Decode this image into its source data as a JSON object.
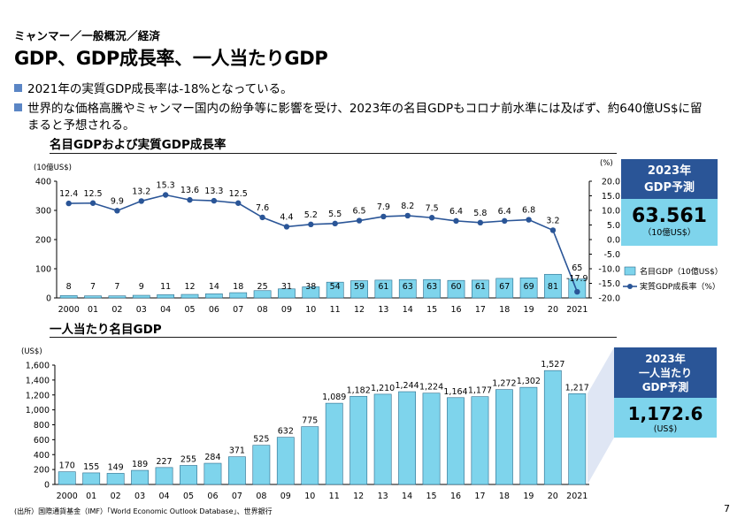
{
  "header": {
    "breadcrumb": "ミャンマー／一般概況／経済",
    "title": "GDP、GDP成長率、一人当たりGDP"
  },
  "bullets": [
    "2021年の実質GDP成長率は-18%となっている。",
    "世界的な価格高騰やミャンマー国内の紛争等に影響を受け、2023年の名目GDPもコロナ前水準には及ばず、約640億US$に留",
    "まると予想される。"
  ],
  "chart_data": [
    {
      "type": "bar",
      "title": "名目GDPおよび実質GDP成長率",
      "categories": [
        "2000",
        "01",
        "02",
        "03",
        "04",
        "05",
        "06",
        "07",
        "08",
        "09",
        "10",
        "11",
        "12",
        "13",
        "14",
        "15",
        "16",
        "17",
        "18",
        "19",
        "20",
        "2021"
      ],
      "y_unit": "(10億US$)",
      "y2_unit": "(%)",
      "ylim": [
        0,
        400
      ],
      "yticks": [
        "0",
        "100",
        "200",
        "300",
        "400"
      ],
      "y2lim": [
        -20,
        20
      ],
      "y2ticks": [
        "-20.0",
        "-15.0",
        "-10.0",
        "-5.0",
        "0.0",
        "5.0",
        "10.0",
        "15.0",
        "20.0"
      ],
      "series": [
        {
          "name": "名目GDP（10億US$）",
          "type": "bar",
          "color": "#7ed4ec",
          "values": [
            8,
            7,
            7,
            9,
            11,
            12,
            14,
            18,
            25,
            31,
            38,
            54,
            59,
            61,
            63,
            63,
            60,
            61,
            67,
            69,
            81,
            65
          ],
          "labels": [
            "8",
            "7",
            "7",
            "9",
            "11",
            "12",
            "14",
            "18",
            "25",
            "31",
            "38",
            "54",
            "59",
            "61",
            "63",
            "63",
            "60",
            "61",
            "67",
            "69",
            "81",
            "65"
          ]
        },
        {
          "name": "実質GDP成長率（%）",
          "type": "line",
          "color": "#2a5597",
          "values": [
            12.4,
            12.5,
            9.9,
            13.2,
            15.3,
            13.6,
            13.3,
            12.5,
            7.6,
            4.4,
            5.2,
            5.5,
            6.5,
            7.9,
            8.2,
            7.5,
            6.4,
            5.8,
            6.4,
            6.8,
            3.2,
            -17.9
          ],
          "labels": [
            "12.4",
            "12.5",
            "9.9",
            "13.2",
            "15.3",
            "13.6",
            "13.3",
            "12.5",
            "7.6",
            "4.4",
            "5.2",
            "5.5",
            "6.5",
            "7.9",
            "8.2",
            "7.5",
            "6.4",
            "5.8",
            "6.4",
            "6.8",
            "3.2",
            "-17.9"
          ]
        }
      ],
      "legend": "right",
      "callout": {
        "head": [
          "2023年",
          "GDP予測"
        ],
        "value": "63.561",
        "unit": "（10億US$）"
      }
    },
    {
      "type": "bar",
      "title": "一人当たり名目GDP",
      "categories": [
        "2000",
        "01",
        "02",
        "03",
        "04",
        "05",
        "06",
        "07",
        "08",
        "09",
        "10",
        "11",
        "12",
        "13",
        "14",
        "15",
        "16",
        "17",
        "18",
        "19",
        "20",
        "2021"
      ],
      "y_unit": "(US$)",
      "ylim": [
        0,
        1600
      ],
      "yticks": [
        "0",
        "200",
        "400",
        "600",
        "800",
        "1,000",
        "1,200",
        "1,400",
        "1,600"
      ],
      "series": [
        {
          "name": "一人当たり名目GDP",
          "type": "bar",
          "color": "#7ed4ec",
          "values": [
            170,
            155,
            149,
            189,
            227,
            255,
            284,
            371,
            525,
            632,
            775,
            1089,
            1182,
            1210,
            1244,
            1224,
            1164,
            1177,
            1272,
            1302,
            1527,
            1217
          ],
          "labels": [
            "170",
            "155",
            "149",
            "189",
            "227",
            "255",
            "284",
            "371",
            "525",
            "632",
            "775",
            "1,089",
            "1,182",
            "1,210",
            "1,244",
            "1,224",
            "1,164",
            "1,177",
            "1,272",
            "1,302",
            "1,527",
            "1,217"
          ]
        }
      ],
      "callout": {
        "head": [
          "2023年",
          "一人当たり",
          "GDP予測"
        ],
        "value": "1,172.6",
        "unit": "(US$)"
      }
    }
  ],
  "footer": {
    "source": "(出所）国際通貨基金（IMF）「World Economic Outlook Database」、世界銀行",
    "page": "7"
  }
}
